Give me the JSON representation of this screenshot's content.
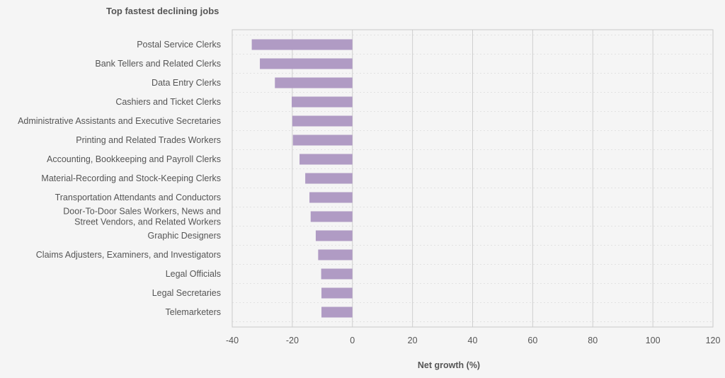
{
  "chart_data": {
    "type": "bar",
    "orientation": "horizontal",
    "title": "Top fastest declining jobs",
    "xlabel": "Net growth (%)",
    "ylabel": "",
    "xlim": [
      -40,
      120
    ],
    "xticks": [
      -40,
      -20,
      0,
      20,
      40,
      60,
      80,
      100,
      120
    ],
    "grid": true,
    "bar_color": "#b09bc4",
    "categories": [
      "Postal Service Clerks",
      "Bank Tellers and Related Clerks",
      "Data Entry Clerks",
      "Cashiers and Ticket Clerks",
      "Administrative Assistants and Executive Secretaries",
      "Printing and Related Trades Workers",
      "Accounting, Bookkeeping and Payroll Clerks",
      "Material-Recording and Stock-Keeping Clerks",
      "Transportation Attendants and Conductors",
      "Door-To-Door Sales Workers, News and Street Vendors, and Related Workers",
      "Graphic Designers",
      "Claims Adjusters, Examiners, and Investigators",
      "Legal Officials",
      "Legal Secretaries",
      "Telemarketers"
    ],
    "category_lines": [
      [
        "Postal Service Clerks"
      ],
      [
        "Bank Tellers and Related Clerks"
      ],
      [
        "Data Entry Clerks"
      ],
      [
        "Cashiers and Ticket Clerks"
      ],
      [
        "Administrative Assistants and Executive Secretaries"
      ],
      [
        "Printing and Related Trades Workers"
      ],
      [
        "Accounting, Bookkeeping and Payroll Clerks"
      ],
      [
        "Material-Recording and Stock-Keeping Clerks"
      ],
      [
        "Transportation Attendants and Conductors"
      ],
      [
        "Door-To-Door Sales Workers, News and",
        "Street Vendors, and Related Workers"
      ],
      [
        "Graphic Designers"
      ],
      [
        "Claims Adjusters, Examiners, and Investigators"
      ],
      [
        "Legal Officials"
      ],
      [
        "Legal Secretaries"
      ],
      [
        "Telemarketers"
      ]
    ],
    "values": [
      -33.5,
      -30.8,
      -25.8,
      -20.2,
      -20.0,
      -19.8,
      -17.6,
      -15.7,
      -14.3,
      -13.9,
      -12.2,
      -11.4,
      -10.4,
      -10.3,
      -10.3
    ]
  }
}
